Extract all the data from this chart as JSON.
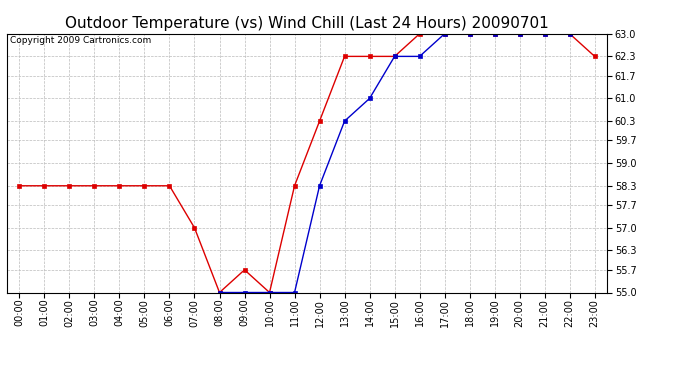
{
  "title": "Outdoor Temperature (vs) Wind Chill (Last 24 Hours) 20090701",
  "copyright_text": "Copyright 2009 Cartronics.com",
  "hours": [
    "00:00",
    "01:00",
    "02:00",
    "03:00",
    "04:00",
    "05:00",
    "06:00",
    "07:00",
    "08:00",
    "09:00",
    "10:00",
    "11:00",
    "12:00",
    "13:00",
    "14:00",
    "15:00",
    "16:00",
    "17:00",
    "18:00",
    "19:00",
    "20:00",
    "21:00",
    "22:00",
    "23:00"
  ],
  "temp_red": [
    58.3,
    58.3,
    58.3,
    58.3,
    58.3,
    58.3,
    58.3,
    57.0,
    55.0,
    55.7,
    55.0,
    58.3,
    60.3,
    62.3,
    62.3,
    62.3,
    63.0,
    63.0,
    63.0,
    63.0,
    63.0,
    63.0,
    63.0,
    62.3
  ],
  "wind_chill_blue": [
    null,
    null,
    null,
    null,
    null,
    null,
    null,
    null,
    55.0,
    55.0,
    55.0,
    55.0,
    58.3,
    60.3,
    61.0,
    62.3,
    62.3,
    63.0,
    63.0,
    63.0,
    63.0,
    63.0,
    63.0,
    null
  ],
  "ylim": [
    55.0,
    63.0
  ],
  "yticks": [
    55.0,
    55.7,
    56.3,
    57.0,
    57.7,
    58.3,
    59.0,
    59.7,
    60.3,
    61.0,
    61.7,
    62.3,
    63.0
  ],
  "red_color": "#dd0000",
  "blue_color": "#0000cc",
  "grid_color": "#bbbbbb",
  "bg_color": "#ffffff",
  "title_fontsize": 11,
  "copyright_fontsize": 6.5,
  "tick_fontsize": 7,
  "marker_size": 2.5,
  "line_width": 1.0
}
